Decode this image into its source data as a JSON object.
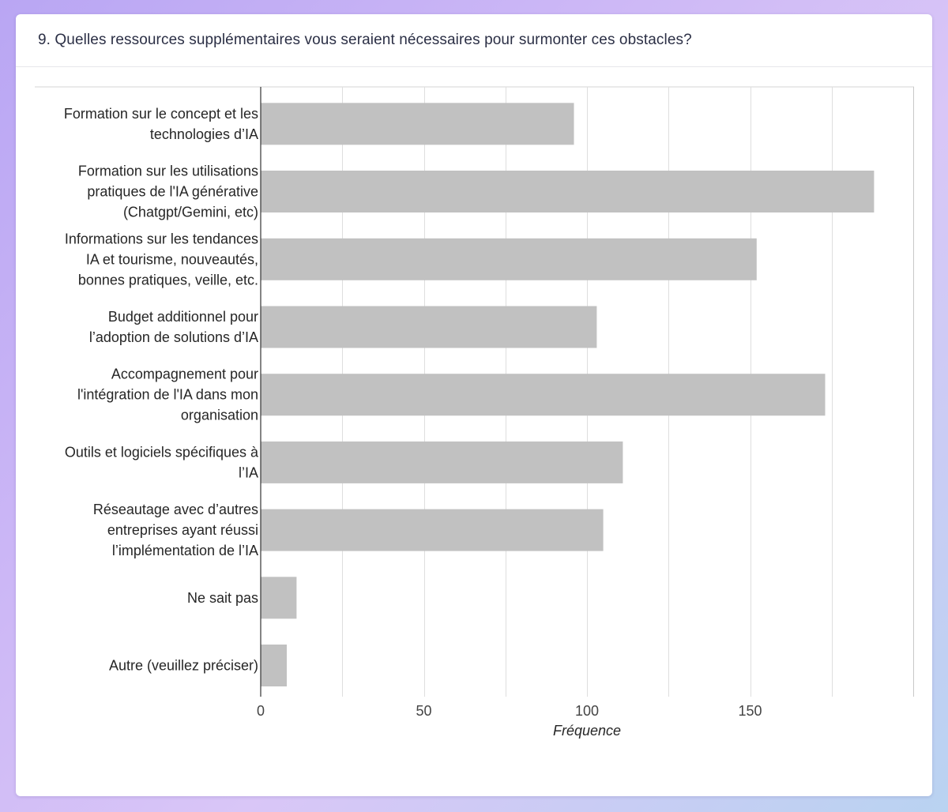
{
  "question": {
    "title": "9. Quelles ressources supplémentaires vous seraient nécessaires pour surmonter ces obstacles?"
  },
  "colors": {
    "bar": "#c1c1c1",
    "grid": "#dedede",
    "axis": "#333333"
  },
  "chart_data": {
    "type": "bar",
    "orientation": "horizontal",
    "categories": [
      [
        "Formation sur le concept et les",
        "technologies d’IA"
      ],
      [
        "Formation sur les utilisations",
        "pratiques de l'IA générative",
        "(Chatgpt/Gemini, etc)"
      ],
      [
        "Informations sur les tendances",
        "IA et tourisme, nouveautés,",
        "bonnes pratiques, veille, etc."
      ],
      [
        "Budget additionnel pour",
        "l’adoption de solutions d’IA"
      ],
      [
        "Accompagnement pour",
        "l'intégration de l'IA dans mon",
        "organisation"
      ],
      [
        "Outils et logiciels spécifiques à",
        "l’IA"
      ],
      [
        "Réseautage avec d’autres",
        "entreprises ayant réussi",
        "l’implémentation de l’IA"
      ],
      [
        "Ne sait pas"
      ],
      [
        "Autre (veuillez préciser)"
      ]
    ],
    "values": [
      96,
      188,
      152,
      103,
      173,
      111,
      105,
      11,
      8
    ],
    "xlim": [
      0,
      200
    ],
    "xticks": [
      0,
      50,
      100,
      150
    ],
    "gridlines": [
      0,
      25,
      50,
      75,
      100,
      125,
      150,
      175,
      200
    ],
    "xlabel": "Fréquence",
    "ylabel": "",
    "grid": true,
    "legend": "none"
  }
}
